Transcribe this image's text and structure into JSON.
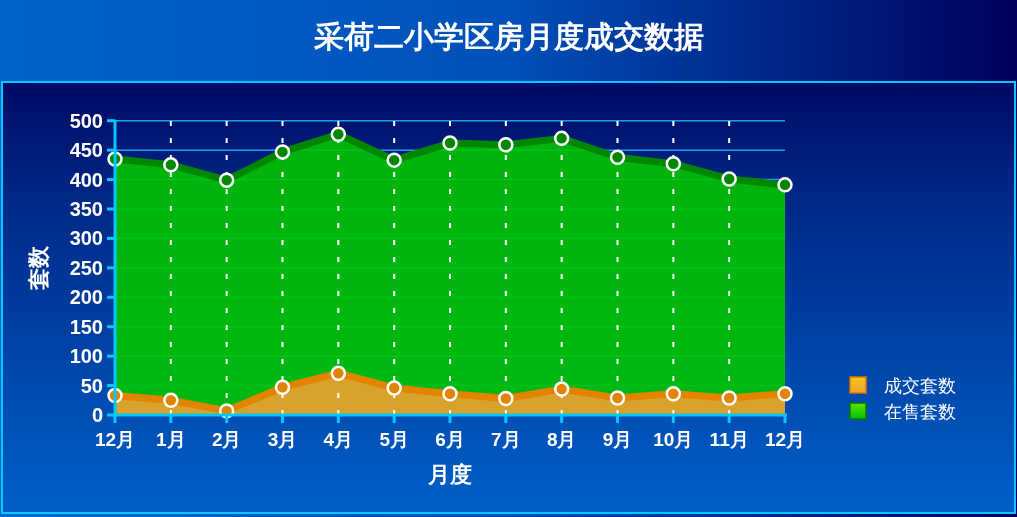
{
  "chart_data": {
    "type": "area",
    "title": "采荷二小学区房月度成交数据",
    "xlabel": "月度",
    "ylabel": "套数",
    "categories": [
      "12月",
      "1月",
      "2月",
      "3月",
      "4月",
      "5月",
      "6月",
      "7月",
      "8月",
      "9月",
      "10月",
      "11月",
      "12月"
    ],
    "series": [
      {
        "name": "成交套数",
        "color": "#f0a030",
        "values": [
          33,
          25,
          7,
          47,
          71,
          46,
          36,
          28,
          44,
          29,
          36,
          29,
          36
        ]
      },
      {
        "name": "在售套数",
        "color": "#00c400",
        "values": [
          435,
          425,
          399,
          447,
          477,
          433,
          462,
          459,
          470,
          438,
          427,
          401,
          391
        ]
      }
    ],
    "ylim": [
      0,
      500
    ],
    "yticks": [
      0,
      50,
      100,
      150,
      200,
      250,
      300,
      350,
      400,
      450,
      500
    ],
    "grid": true,
    "legend": "right",
    "marker": "circle",
    "line_style": "solid"
  }
}
